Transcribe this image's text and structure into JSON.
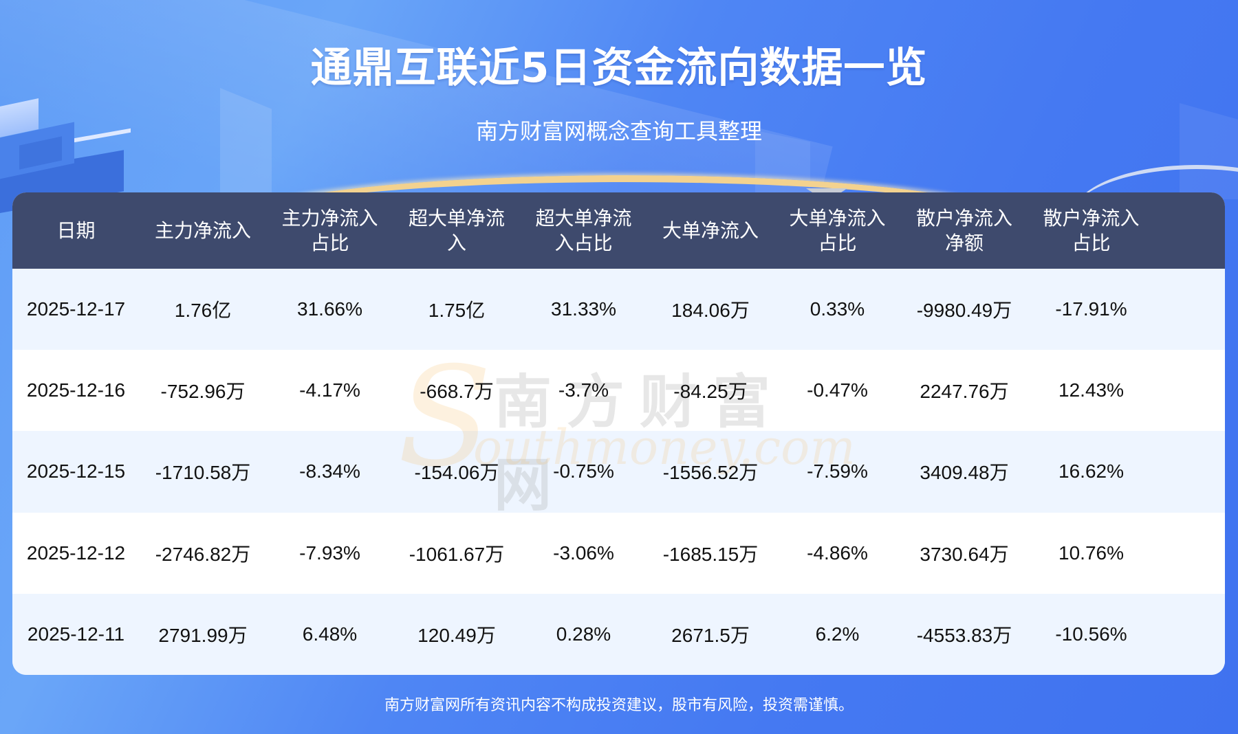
{
  "header": {
    "title": "通鼎互联近5日资金流向数据一览",
    "subtitle": "南方财富网概念查询工具整理"
  },
  "table": {
    "columns": [
      {
        "line1": "日期",
        "line2": ""
      },
      {
        "line1": "主力净流入",
        "line2": ""
      },
      {
        "line1": "主力净流入",
        "line2": "占比"
      },
      {
        "line1": "超大单净流",
        "line2": "入"
      },
      {
        "line1": "超大单净流",
        "line2": "入占比"
      },
      {
        "line1": "大单净流入",
        "line2": ""
      },
      {
        "line1": "大单净流入",
        "line2": "占比"
      },
      {
        "line1": "散户净流入",
        "line2": "净额"
      },
      {
        "line1": "散户净流入",
        "line2": "占比"
      }
    ],
    "rows": [
      [
        "2025-12-17",
        "1.76亿",
        "31.66%",
        "1.75亿",
        "31.33%",
        "184.06万",
        "0.33%",
        "-9980.49万",
        "-17.91%"
      ],
      [
        "2025-12-16",
        "-752.96万",
        "-4.17%",
        "-668.7万",
        "-3.7%",
        "-84.25万",
        "-0.47%",
        "2247.76万",
        "12.43%"
      ],
      [
        "2025-12-15",
        "-1710.58万",
        "-8.34%",
        "-154.06万",
        "-0.75%",
        "-1556.52万",
        "-7.59%",
        "3409.48万",
        "16.62%"
      ],
      [
        "2025-12-12",
        "-2746.82万",
        "-7.93%",
        "-1061.67万",
        "-3.06%",
        "-1685.15万",
        "-4.86%",
        "3730.64万",
        "10.76%"
      ],
      [
        "2025-12-11",
        "2791.99万",
        "6.48%",
        "120.49万",
        "0.28%",
        "2671.5万",
        "6.2%",
        "-4553.83万",
        "-10.56%"
      ]
    ]
  },
  "watermark": {
    "initial": "S",
    "cn": "南方财富网",
    "en": "outhmoney.com"
  },
  "footer": {
    "disclaimer": "南方财富网所有资讯内容不构成投资建议，股市有风险，投资需谨慎。"
  },
  "colors": {
    "background": "#4a7ef3",
    "header_row": "#3e4a6d",
    "row_odd": "#eef5ff",
    "row_even": "#ffffff",
    "text": "#111111"
  }
}
